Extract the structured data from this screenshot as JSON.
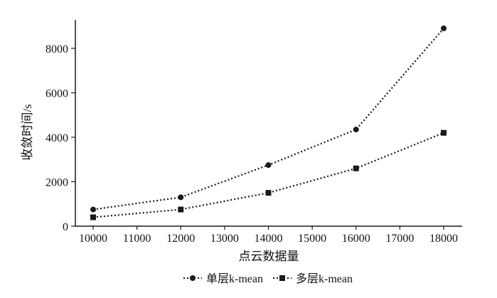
{
  "chart_data": {
    "type": "line",
    "title": "",
    "xlabel": "点云数据量",
    "ylabel": "收敛时间/s",
    "xlim": [
      9600,
      18300
    ],
    "ylim": [
      0,
      9300
    ],
    "xticks": [
      10000,
      11000,
      12000,
      13000,
      14000,
      15000,
      16000,
      17000,
      18000
    ],
    "yticks": [
      0,
      2000,
      4000,
      6000,
      8000
    ],
    "x": [
      10000,
      12000,
      14000,
      16000,
      18000
    ],
    "series": [
      {
        "name": "单层k-mean",
        "marker": "circle",
        "values": [
          750,
          1300,
          2750,
          4350,
          8900
        ]
      },
      {
        "name": "多层k-mean",
        "marker": "square",
        "values": [
          400,
          750,
          1500,
          2600,
          4200
        ]
      }
    ],
    "grid": false,
    "legend_position": "bottom-center",
    "colors": {
      "line": "#1a1a1a"
    }
  }
}
